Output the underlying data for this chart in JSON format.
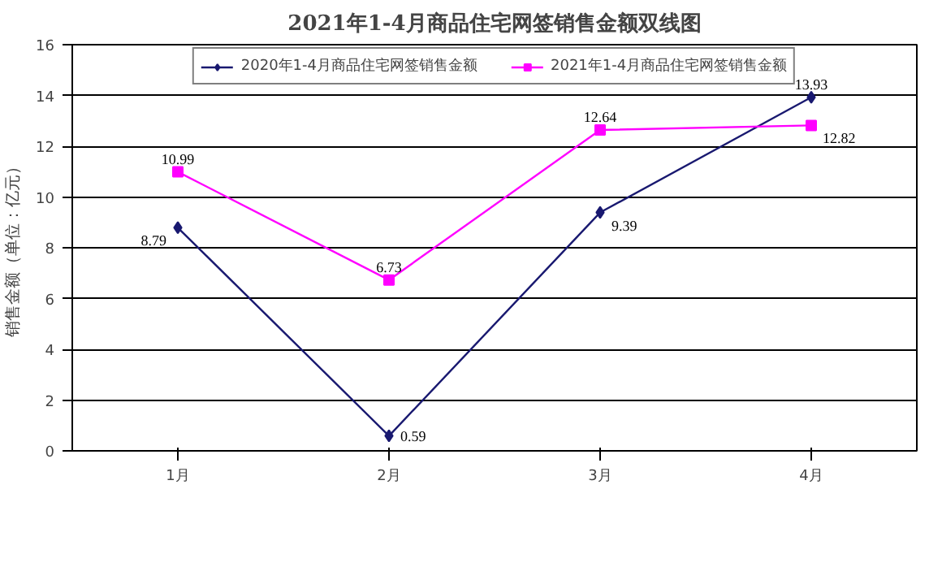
{
  "chart_data": {
    "type": "line",
    "title": "2021年1-4月商品住宅网签销售金额双线图",
    "ylabel": "销售金额（单位：亿元）",
    "categories": [
      "1月",
      "2月",
      "3月",
      "4月"
    ],
    "series": [
      {
        "name": "2020年1-4月商品住宅网签销售金额",
        "color": "#191970",
        "marker": "diamond",
        "values": [
          8.79,
          0.59,
          9.39,
          13.93
        ]
      },
      {
        "name": "2021年1-4月商品住宅网签销售金额",
        "color": "#ff00ff",
        "marker": "square",
        "values": [
          10.99,
          6.73,
          12.64,
          12.82
        ]
      }
    ],
    "ylim": [
      0,
      16
    ],
    "yticks": [
      0,
      2,
      4,
      6,
      8,
      10,
      12,
      14,
      16
    ],
    "grid": "y",
    "legend": "top",
    "data_labels": true,
    "line_style": "solid"
  }
}
